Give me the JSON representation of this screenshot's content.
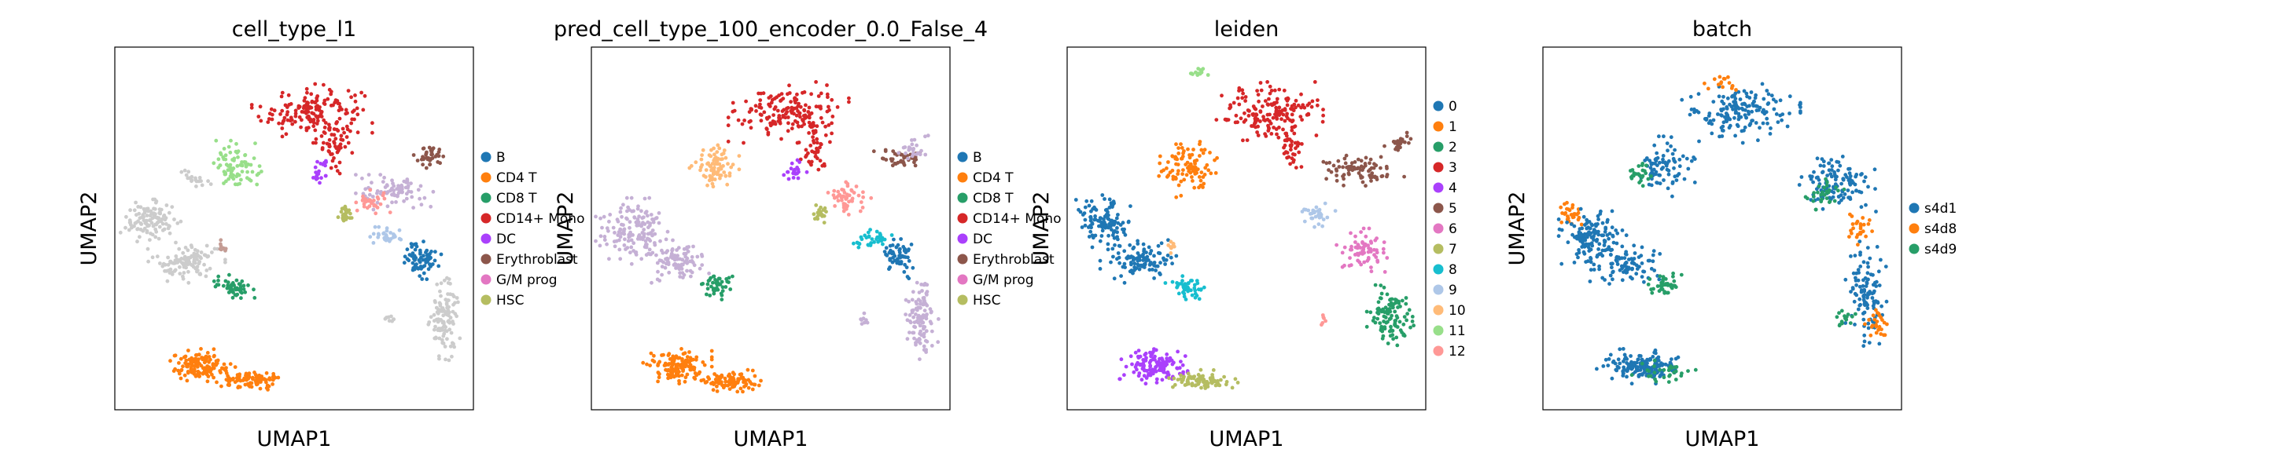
{
  "chart_data": [
    {
      "type": "scatter",
      "title": "cell_type_l1",
      "xlabel": "UMAP1",
      "ylabel": "UMAP2",
      "grid": false,
      "legend_placement": "right",
      "legend": [
        {
          "label": "B",
          "color": "#1f77b4"
        },
        {
          "label": "CD4 T",
          "color": "#ff7f0e"
        },
        {
          "label": "CD8 T",
          "color": "#279e68"
        },
        {
          "label": "CD14+ Mono",
          "color": "#d62728"
        },
        {
          "label": "DC",
          "color": "#aa40fc"
        },
        {
          "label": "Erythroblast",
          "color": "#8c564b"
        },
        {
          "label": "G/M prog",
          "color": "#e377c2"
        },
        {
          "label": "HSC",
          "color": "#b5bd61"
        }
      ],
      "clusters": [
        {
          "color": "#d62728",
          "cx": 0.55,
          "cy": 0.82,
          "rx": 0.14,
          "ry": 0.07,
          "n": 170
        },
        {
          "color": "#d62728",
          "cx": 0.62,
          "cy": 0.72,
          "rx": 0.04,
          "ry": 0.06,
          "n": 40
        },
        {
          "color": "#aa40fc",
          "cx": 0.57,
          "cy": 0.66,
          "rx": 0.03,
          "ry": 0.03,
          "n": 20
        },
        {
          "color": "#98df8a",
          "cx": 0.34,
          "cy": 0.67,
          "rx": 0.06,
          "ry": 0.06,
          "n": 80
        },
        {
          "color": "#cccccc",
          "cx": 0.22,
          "cy": 0.64,
          "rx": 0.04,
          "ry": 0.02,
          "n": 20
        },
        {
          "color": "#cccccc",
          "cx": 0.1,
          "cy": 0.52,
          "rx": 0.07,
          "ry": 0.05,
          "n": 110
        },
        {
          "color": "#cccccc",
          "cx": 0.2,
          "cy": 0.41,
          "rx": 0.09,
          "ry": 0.05,
          "n": 110
        },
        {
          "color": "#279e68",
          "cx": 0.33,
          "cy": 0.34,
          "rx": 0.05,
          "ry": 0.03,
          "n": 50
        },
        {
          "color": "#c49c94",
          "cx": 0.3,
          "cy": 0.45,
          "rx": 0.015,
          "ry": 0.015,
          "n": 10
        },
        {
          "color": "#ff7f0e",
          "cx": 0.24,
          "cy": 0.12,
          "rx": 0.08,
          "ry": 0.04,
          "n": 130
        },
        {
          "color": "#ff7f0e",
          "cx": 0.38,
          "cy": 0.08,
          "rx": 0.08,
          "ry": 0.025,
          "n": 90
        },
        {
          "color": "#c5b0d5",
          "cx": 0.78,
          "cy": 0.6,
          "rx": 0.09,
          "ry": 0.04,
          "n": 80
        },
        {
          "color": "#8c564b",
          "cx": 0.88,
          "cy": 0.7,
          "rx": 0.05,
          "ry": 0.03,
          "n": 40
        },
        {
          "color": "#ff9896",
          "cx": 0.72,
          "cy": 0.57,
          "rx": 0.04,
          "ry": 0.03,
          "n": 30
        },
        {
          "color": "#b5bd61",
          "cx": 0.64,
          "cy": 0.54,
          "rx": 0.02,
          "ry": 0.02,
          "n": 25
        },
        {
          "color": "#aec7e8",
          "cx": 0.76,
          "cy": 0.48,
          "rx": 0.04,
          "ry": 0.02,
          "n": 30
        },
        {
          "color": "#1f77b4",
          "cx": 0.85,
          "cy": 0.42,
          "rx": 0.05,
          "ry": 0.05,
          "n": 70
        },
        {
          "color": "#cccccc",
          "cx": 0.92,
          "cy": 0.25,
          "rx": 0.04,
          "ry": 0.1,
          "n": 110
        },
        {
          "color": "#cccccc",
          "cx": 0.77,
          "cy": 0.25,
          "rx": 0.02,
          "ry": 0.02,
          "n": 8
        }
      ]
    },
    {
      "type": "scatter",
      "title": "pred_cell_type_100_encoder_0.0_False_4",
      "xlabel": "UMAP1",
      "ylabel": "UMAP2",
      "grid": false,
      "legend_placement": "right",
      "legend": [
        {
          "label": "B",
          "color": "#1f77b4"
        },
        {
          "label": "CD4 T",
          "color": "#ff7f0e"
        },
        {
          "label": "CD8 T",
          "color": "#279e68"
        },
        {
          "label": "CD14+ Mono",
          "color": "#d62728"
        },
        {
          "label": "DC",
          "color": "#aa40fc"
        },
        {
          "label": "Erythroblast",
          "color": "#8c564b"
        },
        {
          "label": "G/M prog",
          "color": "#e377c2"
        },
        {
          "label": "HSC",
          "color": "#b5bd61"
        }
      ],
      "clusters": [
        {
          "color": "#d62728",
          "cx": 0.55,
          "cy": 0.82,
          "rx": 0.14,
          "ry": 0.07,
          "n": 170
        },
        {
          "color": "#d62728",
          "cx": 0.62,
          "cy": 0.72,
          "rx": 0.04,
          "ry": 0.06,
          "n": 40
        },
        {
          "color": "#aa40fc",
          "cx": 0.57,
          "cy": 0.66,
          "rx": 0.03,
          "ry": 0.03,
          "n": 20
        },
        {
          "color": "#ffbb78",
          "cx": 0.34,
          "cy": 0.67,
          "rx": 0.06,
          "ry": 0.06,
          "n": 80
        },
        {
          "color": "#c5b0d5",
          "cx": 0.12,
          "cy": 0.5,
          "rx": 0.09,
          "ry": 0.07,
          "n": 140
        },
        {
          "color": "#c5b0d5",
          "cx": 0.22,
          "cy": 0.41,
          "rx": 0.09,
          "ry": 0.05,
          "n": 100
        },
        {
          "color": "#279e68",
          "cx": 0.35,
          "cy": 0.34,
          "rx": 0.04,
          "ry": 0.03,
          "n": 45
        },
        {
          "color": "#ff7f0e",
          "cx": 0.24,
          "cy": 0.12,
          "rx": 0.08,
          "ry": 0.04,
          "n": 130
        },
        {
          "color": "#ff7f0e",
          "cx": 0.38,
          "cy": 0.08,
          "rx": 0.08,
          "ry": 0.025,
          "n": 90
        },
        {
          "color": "#ff9896",
          "cx": 0.72,
          "cy": 0.58,
          "rx": 0.05,
          "ry": 0.04,
          "n": 50
        },
        {
          "color": "#8c564b",
          "cx": 0.86,
          "cy": 0.69,
          "rx": 0.06,
          "ry": 0.03,
          "n": 40
        },
        {
          "color": "#c5b0d5",
          "cx": 0.9,
          "cy": 0.72,
          "rx": 0.04,
          "ry": 0.03,
          "n": 25
        },
        {
          "color": "#b5bd61",
          "cx": 0.64,
          "cy": 0.54,
          "rx": 0.02,
          "ry": 0.02,
          "n": 25
        },
        {
          "color": "#17becf",
          "cx": 0.78,
          "cy": 0.47,
          "rx": 0.05,
          "ry": 0.025,
          "n": 35
        },
        {
          "color": "#1f77b4",
          "cx": 0.86,
          "cy": 0.42,
          "rx": 0.05,
          "ry": 0.05,
          "n": 60
        },
        {
          "color": "#c5b0d5",
          "cx": 0.92,
          "cy": 0.25,
          "rx": 0.04,
          "ry": 0.1,
          "n": 110
        },
        {
          "color": "#c5b0d5",
          "cx": 0.77,
          "cy": 0.25,
          "rx": 0.02,
          "ry": 0.02,
          "n": 8
        }
      ]
    },
    {
      "type": "scatter",
      "title": "leiden",
      "xlabel": "UMAP1",
      "ylabel": "UMAP2",
      "grid": false,
      "legend_placement": "right",
      "legend": [
        {
          "label": "0",
          "color": "#1f77b4"
        },
        {
          "label": "1",
          "color": "#ff7f0e"
        },
        {
          "label": "2",
          "color": "#279e68"
        },
        {
          "label": "3",
          "color": "#d62728"
        },
        {
          "label": "4",
          "color": "#aa40fc"
        },
        {
          "label": "5",
          "color": "#8c564b"
        },
        {
          "label": "6",
          "color": "#e377c2"
        },
        {
          "label": "7",
          "color": "#b5bd61"
        },
        {
          "label": "8",
          "color": "#17becf"
        },
        {
          "label": "9",
          "color": "#aec7e8"
        },
        {
          "label": "10",
          "color": "#ffbb78"
        },
        {
          "label": "11",
          "color": "#98df8a"
        },
        {
          "label": "12",
          "color": "#ff9896"
        }
      ],
      "clusters": [
        {
          "color": "#98df8a",
          "cx": 0.37,
          "cy": 0.93,
          "rx": 0.04,
          "ry": 0.015,
          "n": 15
        },
        {
          "color": "#d62728",
          "cx": 0.57,
          "cy": 0.82,
          "rx": 0.13,
          "ry": 0.07,
          "n": 170
        },
        {
          "color": "#d62728",
          "cx": 0.62,
          "cy": 0.72,
          "rx": 0.04,
          "ry": 0.06,
          "n": 40
        },
        {
          "color": "#ff7f0e",
          "cx": 0.34,
          "cy": 0.67,
          "rx": 0.07,
          "ry": 0.07,
          "n": 100
        },
        {
          "color": "#1f77b4",
          "cx": 0.1,
          "cy": 0.52,
          "rx": 0.07,
          "ry": 0.06,
          "n": 110
        },
        {
          "color": "#1f77b4",
          "cx": 0.2,
          "cy": 0.41,
          "rx": 0.09,
          "ry": 0.05,
          "n": 110
        },
        {
          "color": "#17becf",
          "cx": 0.33,
          "cy": 0.34,
          "rx": 0.05,
          "ry": 0.03,
          "n": 45
        },
        {
          "color": "#ffbb78",
          "cx": 0.29,
          "cy": 0.45,
          "rx": 0.015,
          "ry": 0.015,
          "n": 10
        },
        {
          "color": "#aa40fc",
          "cx": 0.24,
          "cy": 0.12,
          "rx": 0.08,
          "ry": 0.04,
          "n": 130
        },
        {
          "color": "#b5bd61",
          "cx": 0.38,
          "cy": 0.08,
          "rx": 0.08,
          "ry": 0.025,
          "n": 90
        },
        {
          "color": "#8c564b",
          "cx": 0.82,
          "cy": 0.66,
          "rx": 0.1,
          "ry": 0.04,
          "n": 80
        },
        {
          "color": "#8c564b",
          "cx": 0.92,
          "cy": 0.74,
          "rx": 0.04,
          "ry": 0.02,
          "n": 25
        },
        {
          "color": "#aec7e8",
          "cx": 0.7,
          "cy": 0.54,
          "rx": 0.04,
          "ry": 0.03,
          "n": 30
        },
        {
          "color": "#e377c2",
          "cx": 0.82,
          "cy": 0.44,
          "rx": 0.06,
          "ry": 0.05,
          "n": 70
        },
        {
          "color": "#279e68",
          "cx": 0.9,
          "cy": 0.26,
          "rx": 0.06,
          "ry": 0.07,
          "n": 110
        },
        {
          "color": "#ff9896",
          "cx": 0.71,
          "cy": 0.25,
          "rx": 0.01,
          "ry": 0.02,
          "n": 6
        }
      ]
    },
    {
      "type": "scatter",
      "title": "batch",
      "xlabel": "UMAP1",
      "ylabel": "UMAP2",
      "grid": false,
      "legend_placement": "right",
      "legend": [
        {
          "label": "s4d1",
          "color": "#1f77b4"
        },
        {
          "label": "s4d8",
          "color": "#ff7f0e"
        },
        {
          "label": "s4d9",
          "color": "#279e68"
        }
      ],
      "clusters": [
        {
          "color": "#1f77b4",
          "cx": 0.55,
          "cy": 0.82,
          "rx": 0.14,
          "ry": 0.07,
          "n": 160
        },
        {
          "color": "#ff7f0e",
          "cx": 0.5,
          "cy": 0.9,
          "rx": 0.05,
          "ry": 0.02,
          "n": 15
        },
        {
          "color": "#1f77b4",
          "cx": 0.34,
          "cy": 0.67,
          "rx": 0.07,
          "ry": 0.07,
          "n": 80
        },
        {
          "color": "#279e68",
          "cx": 0.27,
          "cy": 0.65,
          "rx": 0.03,
          "ry": 0.03,
          "n": 25
        },
        {
          "color": "#ff7f0e",
          "cx": 0.08,
          "cy": 0.54,
          "rx": 0.03,
          "ry": 0.03,
          "n": 30
        },
        {
          "color": "#1f77b4",
          "cx": 0.14,
          "cy": 0.47,
          "rx": 0.08,
          "ry": 0.07,
          "n": 130
        },
        {
          "color": "#1f77b4",
          "cx": 0.22,
          "cy": 0.4,
          "rx": 0.09,
          "ry": 0.05,
          "n": 90
        },
        {
          "color": "#279e68",
          "cx": 0.34,
          "cy": 0.34,
          "rx": 0.04,
          "ry": 0.03,
          "n": 40
        },
        {
          "color": "#1f77b4",
          "cx": 0.27,
          "cy": 0.12,
          "rx": 0.1,
          "ry": 0.04,
          "n": 150
        },
        {
          "color": "#279e68",
          "cx": 0.33,
          "cy": 0.1,
          "rx": 0.08,
          "ry": 0.03,
          "n": 30
        },
        {
          "color": "#1f77b4",
          "cx": 0.82,
          "cy": 0.62,
          "rx": 0.1,
          "ry": 0.07,
          "n": 120
        },
        {
          "color": "#279e68",
          "cx": 0.78,
          "cy": 0.6,
          "rx": 0.05,
          "ry": 0.04,
          "n": 30
        },
        {
          "color": "#ff7f0e",
          "cx": 0.87,
          "cy": 0.5,
          "rx": 0.04,
          "ry": 0.04,
          "n": 25
        },
        {
          "color": "#1f77b4",
          "cx": 0.9,
          "cy": 0.32,
          "rx": 0.05,
          "ry": 0.12,
          "n": 110
        },
        {
          "color": "#ff7f0e",
          "cx": 0.93,
          "cy": 0.23,
          "rx": 0.03,
          "ry": 0.05,
          "n": 25
        },
        {
          "color": "#279e68",
          "cx": 0.84,
          "cy": 0.25,
          "rx": 0.03,
          "ry": 0.03,
          "n": 15
        }
      ]
    }
  ]
}
